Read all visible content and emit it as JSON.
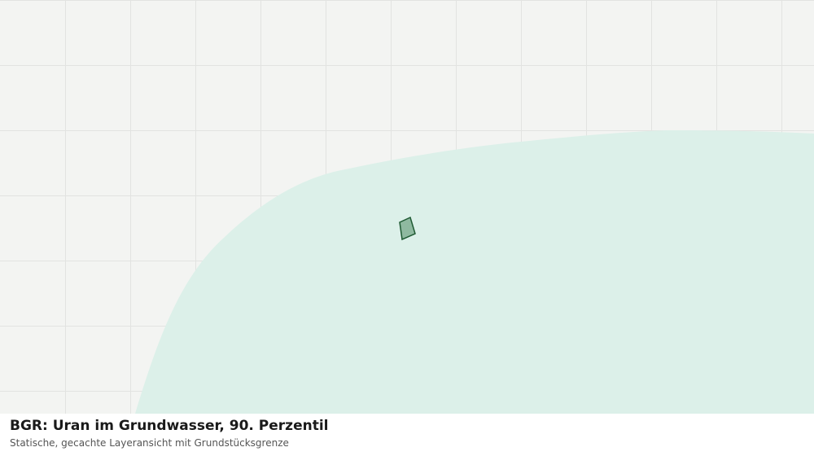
{
  "caption": {
    "title": "BGR: Uran im Grundwasser, 90. Perzentil",
    "subtitle": "Statische, gecachte Layeransicht mit Grundstücksgrenze"
  }
}
